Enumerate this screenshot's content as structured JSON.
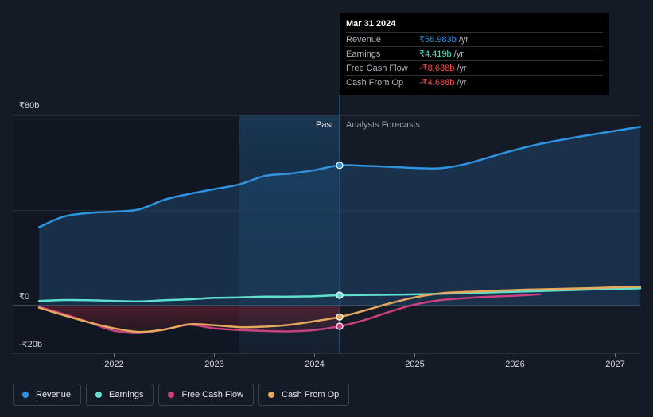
{
  "chart_data": {
    "type": "line",
    "y_unit_labels": {
      "top": "₹80b",
      "zero": "₹0",
      "bottom": "-₹20b"
    },
    "ylim": [
      -20,
      80
    ],
    "xlim": [
      2021.25,
      2027.25
    ],
    "x_ticks": [
      2022,
      2023,
      2024,
      2025,
      2026,
      2027
    ],
    "x_tick_labels": [
      "2022",
      "2023",
      "2024",
      "2025",
      "2026",
      "2027"
    ],
    "past_label": "Past",
    "forecast_label": "Analysts Forecasts",
    "divider_x": 2024.25,
    "forecast_shade_start": 2023.25,
    "series": [
      {
        "name": "Revenue",
        "color": "#2f93e0",
        "fill": true,
        "points": [
          [
            2021.25,
            33
          ],
          [
            2021.5,
            37.5
          ],
          [
            2021.75,
            39
          ],
          [
            2022,
            39.5
          ],
          [
            2022.25,
            40.5
          ],
          [
            2022.5,
            44.5
          ],
          [
            2022.75,
            47
          ],
          [
            2023,
            49
          ],
          [
            2023.25,
            51
          ],
          [
            2023.5,
            54.5
          ],
          [
            2023.75,
            55.5
          ],
          [
            2024,
            57
          ],
          [
            2024.25,
            59
          ],
          [
            2024.5,
            58.8
          ],
          [
            2024.75,
            58.4
          ],
          [
            2025,
            57.9
          ],
          [
            2025.25,
            57.8
          ],
          [
            2025.5,
            59.5
          ],
          [
            2025.75,
            62.5
          ],
          [
            2026,
            65.5
          ],
          [
            2026.25,
            68
          ],
          [
            2026.5,
            70
          ],
          [
            2026.75,
            71.8
          ],
          [
            2027,
            73.5
          ],
          [
            2027.25,
            75.2
          ]
        ]
      },
      {
        "name": "Earnings",
        "color": "#5fe0cc",
        "fill": false,
        "points": [
          [
            2021.25,
            2
          ],
          [
            2021.5,
            2.4
          ],
          [
            2021.75,
            2.3
          ],
          [
            2022,
            2
          ],
          [
            2022.25,
            1.8
          ],
          [
            2022.5,
            2.3
          ],
          [
            2022.75,
            2.7
          ],
          [
            2023,
            3.3
          ],
          [
            2023.25,
            3.5
          ],
          [
            2023.5,
            3.8
          ],
          [
            2023.75,
            3.8
          ],
          [
            2024,
            4
          ],
          [
            2024.25,
            4.419
          ],
          [
            2024.75,
            4.6
          ],
          [
            2025.25,
            5
          ],
          [
            2025.75,
            5.6
          ],
          [
            2026.25,
            6.2
          ],
          [
            2026.75,
            6.8
          ],
          [
            2027.25,
            7.3
          ]
        ]
      },
      {
        "name": "Free Cash Flow",
        "color": "#c9417f",
        "fill": false,
        "points": [
          [
            2021.25,
            -0.5
          ],
          [
            2021.5,
            -3.5
          ],
          [
            2021.75,
            -7
          ],
          [
            2022,
            -10.5
          ],
          [
            2022.25,
            -11.5
          ],
          [
            2022.5,
            -10
          ],
          [
            2022.75,
            -8
          ],
          [
            2023,
            -9.5
          ],
          [
            2023.25,
            -10.2
          ],
          [
            2023.5,
            -10.6
          ],
          [
            2023.75,
            -10.8
          ],
          [
            2024,
            -10.2
          ],
          [
            2024.25,
            -8.638
          ],
          [
            2024.5,
            -6
          ],
          [
            2024.75,
            -2.5
          ],
          [
            2025,
            0.5
          ],
          [
            2025.25,
            2.3
          ],
          [
            2025.5,
            3.2
          ],
          [
            2025.75,
            3.8
          ],
          [
            2026,
            4.2
          ],
          [
            2026.25,
            4.8
          ]
        ]
      },
      {
        "name": "Cash From Op",
        "color": "#e6a85c",
        "fill": false,
        "points": [
          [
            2021.25,
            -0.8
          ],
          [
            2021.5,
            -4
          ],
          [
            2021.75,
            -7
          ],
          [
            2022,
            -9.5
          ],
          [
            2022.25,
            -11
          ],
          [
            2022.5,
            -10
          ],
          [
            2022.75,
            -7.8
          ],
          [
            2023,
            -8.2
          ],
          [
            2023.25,
            -9
          ],
          [
            2023.5,
            -8.8
          ],
          [
            2023.75,
            -8
          ],
          [
            2024,
            -6.5
          ],
          [
            2024.25,
            -4.688
          ],
          [
            2024.5,
            -2
          ],
          [
            2024.75,
            1
          ],
          [
            2025,
            3.5
          ],
          [
            2025.25,
            5.2
          ],
          [
            2025.5,
            5.8
          ],
          [
            2025.75,
            6.2
          ],
          [
            2026,
            6.6
          ],
          [
            2026.25,
            6.9
          ],
          [
            2026.75,
            7.4
          ],
          [
            2027.25,
            8
          ]
        ]
      }
    ]
  },
  "tooltip": {
    "date": "Mar 31 2024",
    "rows": [
      {
        "label": "Revenue",
        "value": "₹58.983b",
        "unit": "/yr",
        "color": "#2f93e0"
      },
      {
        "label": "Earnings",
        "value": "₹4.419b",
        "unit": "/yr",
        "color": "#5fe0cc"
      },
      {
        "label": "Free Cash Flow",
        "value": "-₹8.638b",
        "unit": "/yr",
        "color": "#ff4d4d"
      },
      {
        "label": "Cash From Op",
        "value": "-₹4.688b",
        "unit": "/yr",
        "color": "#ff4d4d"
      }
    ]
  },
  "legend": [
    {
      "label": "Revenue",
      "color": "#2f93e0"
    },
    {
      "label": "Earnings",
      "color": "#5fe0cc"
    },
    {
      "label": "Free Cash Flow",
      "color": "#c9417f"
    },
    {
      "label": "Cash From Op",
      "color": "#e6a85c"
    }
  ]
}
